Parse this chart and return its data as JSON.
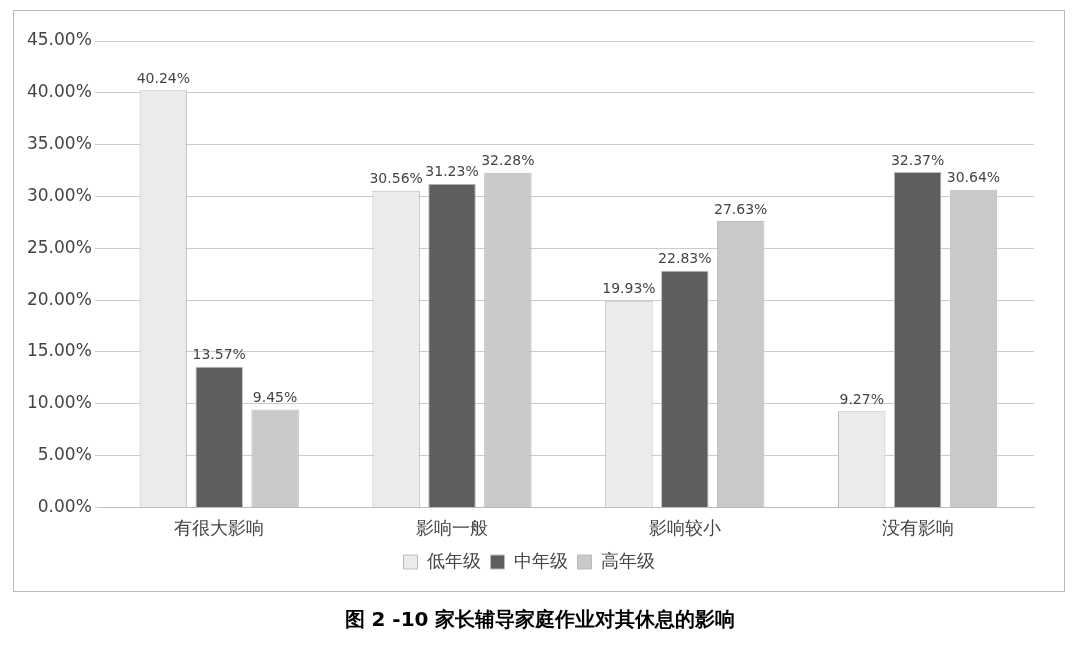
{
  "chart_data": {
    "type": "bar",
    "title": "图 2 -10 家长辅导家庭作业对其休息的影响",
    "categories": [
      "有很大影响",
      "影响一般",
      "影响较小",
      "没有影响"
    ],
    "series": [
      {
        "name": "低年级",
        "color": "#ebebeb",
        "values": [
          40.24,
          30.56,
          19.93,
          9.27
        ],
        "value_labels": [
          "40.24%",
          "30.56%",
          "19.93%",
          "9.27%"
        ]
      },
      {
        "name": "中年级",
        "color": "#5e5e5e",
        "values": [
          13.57,
          31.23,
          22.83,
          32.37
        ],
        "value_labels": [
          "13.57%",
          "31.23%",
          "22.83%",
          "32.37%"
        ]
      },
      {
        "name": "高年级",
        "color": "#c9c9c9",
        "values": [
          9.45,
          32.28,
          27.63,
          30.64
        ],
        "value_labels": [
          "9.45%",
          "32.28%",
          "27.63%",
          "30.64%"
        ]
      }
    ],
    "ylim": [
      0,
      45
    ],
    "yticks": [
      {
        "value": 0,
        "label": "0.00%"
      },
      {
        "value": 5,
        "label": "5.00%"
      },
      {
        "value": 10,
        "label": "10.00%"
      },
      {
        "value": 15,
        "label": "15.00%"
      },
      {
        "value": 20,
        "label": "20.00%"
      },
      {
        "value": 25,
        "label": "25.00%"
      },
      {
        "value": 30,
        "label": "30.00%"
      },
      {
        "value": 35,
        "label": "35.00%"
      },
      {
        "value": 40,
        "label": "40.00%"
      },
      {
        "value": 45,
        "label": "45.00%"
      }
    ],
    "grid": "y",
    "legend": "bottom"
  }
}
